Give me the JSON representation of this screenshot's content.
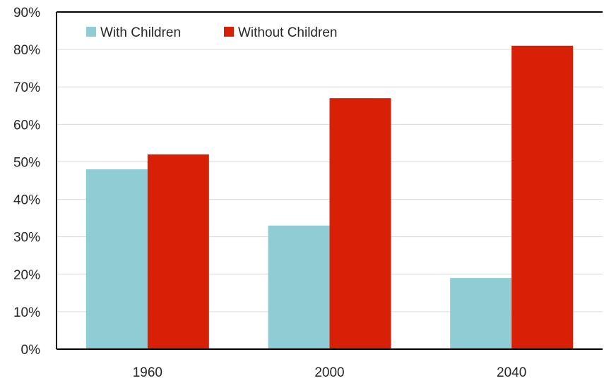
{
  "chart_data": {
    "type": "bar",
    "categories": [
      "1960",
      "2000",
      "2040"
    ],
    "series": [
      {
        "name": "With Children",
        "values": [
          48,
          33,
          19
        ],
        "color": "#8ecdd3"
      },
      {
        "name": "Without Children",
        "values": [
          52,
          67,
          81
        ],
        "color": "#d82006"
      }
    ],
    "ylim": [
      0,
      90
    ],
    "yticks": [
      "0%",
      "10%",
      "20%",
      "30%",
      "40%",
      "50%",
      "60%",
      "70%",
      "80%",
      "90%"
    ],
    "grid": true,
    "legend_position": "top-left"
  }
}
